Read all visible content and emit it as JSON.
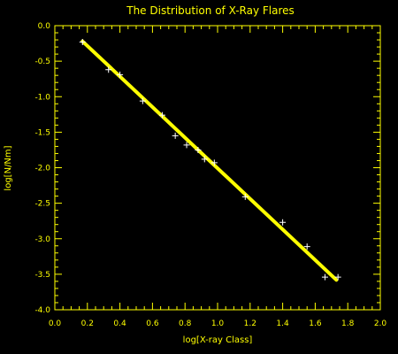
{
  "chart_data": {
    "type": "scatter",
    "title": "The Distribution of X-Ray Flares",
    "xlabel": "log[X-ray Class]",
    "ylabel": "log[N/Nm]",
    "xlim": [
      0.0,
      2.0
    ],
    "ylim": [
      -4.0,
      0.0
    ],
    "xticks": [
      "0.0",
      "0.2",
      "0.4",
      "0.6",
      "0.8",
      "1.0",
      "1.2",
      "1.4",
      "1.6",
      "1.8",
      "2.0"
    ],
    "yticks": [
      "0.0",
      "-0.5",
      "-1.0",
      "-1.5",
      "-2.0",
      "-2.5",
      "-3.0",
      "-3.5",
      "-4.0"
    ],
    "grid": false,
    "series": [
      {
        "kind": "points",
        "marker": "+",
        "x": [
          0.17,
          0.33,
          0.4,
          0.54,
          0.66,
          0.74,
          0.81,
          0.88,
          0.92,
          0.98,
          1.17,
          1.4,
          1.55,
          1.66,
          1.74
        ],
        "y": [
          -0.23,
          -0.62,
          -0.69,
          -1.06,
          -1.26,
          -1.55,
          -1.68,
          -1.75,
          -1.88,
          -1.93,
          -2.41,
          -2.77,
          -3.11,
          -3.54,
          -3.54
        ]
      },
      {
        "kind": "fit-line",
        "x": [
          0.17,
          1.73
        ],
        "y": [
          -0.22,
          -3.58
        ]
      }
    ],
    "colors": {
      "foreground": "#ffff00",
      "background": "#000000"
    }
  }
}
